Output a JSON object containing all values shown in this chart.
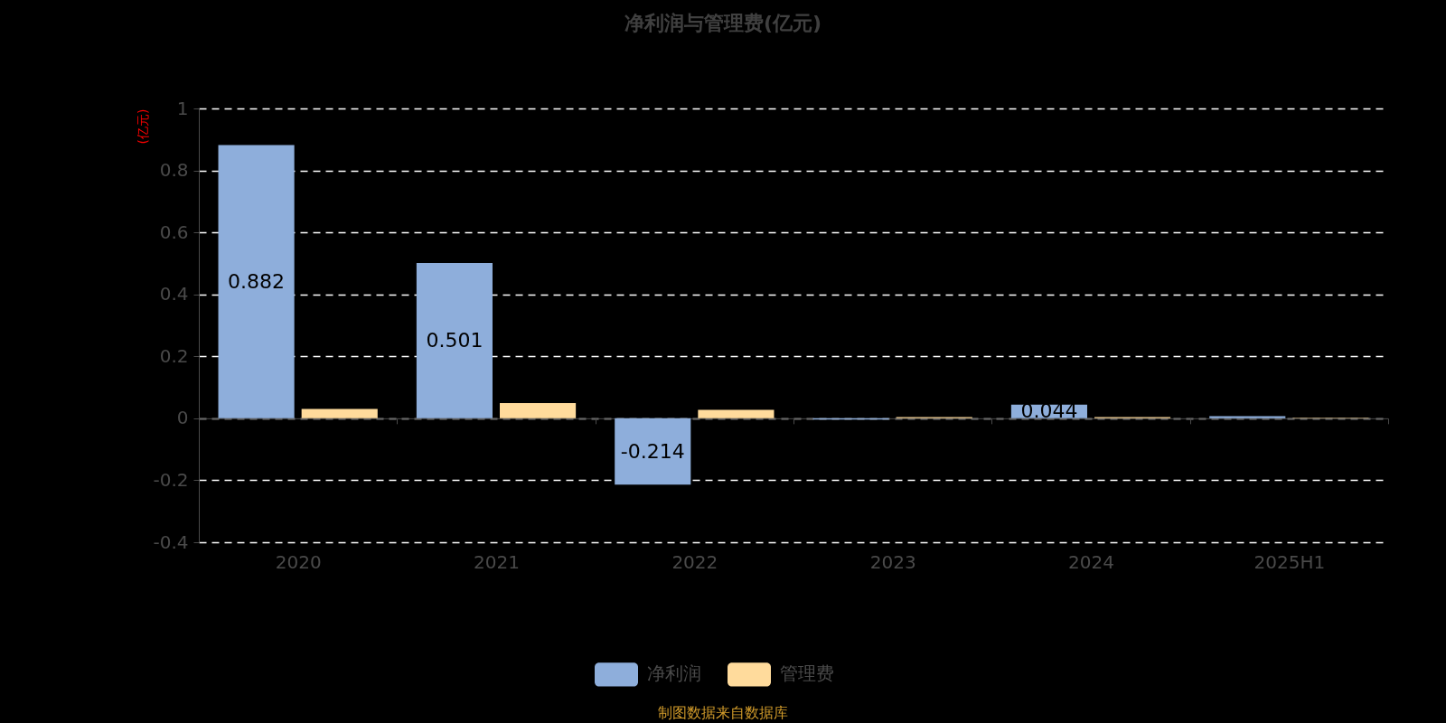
{
  "chart_data": {
    "type": "bar",
    "title": "净利润与管理费(亿元)",
    "ylabel": "(亿元)",
    "categories": [
      "2020",
      "2021",
      "2022",
      "2023",
      "2024",
      "2025H1"
    ],
    "series": [
      {
        "name": "净利润",
        "color": "#8eaedb",
        "values": [
          0.882,
          0.501,
          -0.214,
          -0.004,
          0.044,
          0.007
        ],
        "value_labels": [
          "0.882",
          "0.501",
          "-0.214",
          null,
          "0.044",
          null
        ]
      },
      {
        "name": "管理费",
        "color": "#ffdb9c",
        "values": [
          0.03,
          0.049,
          0.027,
          0.004,
          0.004,
          0.002
        ]
      }
    ],
    "ylim": [
      -0.4,
      1
    ],
    "yticks": [
      -0.4,
      -0.2,
      0,
      0.2,
      0.4,
      0.6,
      0.8,
      1
    ],
    "grid": "y",
    "legend": "bottom",
    "annotations": [
      "制图数据来自数据库"
    ]
  }
}
